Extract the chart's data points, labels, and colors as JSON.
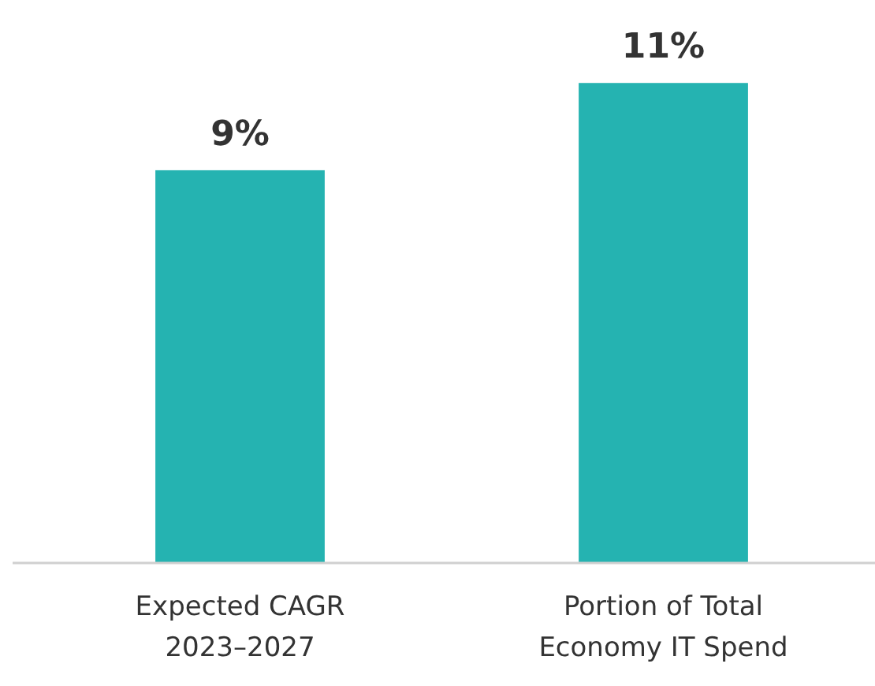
{
  "chart_data": {
    "type": "bar",
    "categories": [
      "Expected CAGR 2023–2027",
      "Portion of Total Economy IT Spend"
    ],
    "values": [
      9,
      11
    ],
    "value_labels": [
      "9%",
      "11%"
    ],
    "color": "#25b3b1"
  }
}
